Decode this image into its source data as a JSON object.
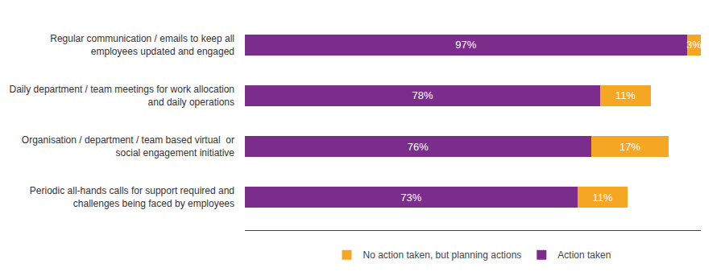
{
  "chart_data": {
    "type": "bar",
    "orientation": "horizontal",
    "stacked": true,
    "categories": [
      "Regular communication / emails to keep all\nemployees updated and engaged",
      "Daily department / team meetings for work allocation\nand daily operations",
      "Organisation / department / team based virtual  or\nsocial engagement initiative",
      "Periodic all-hands calls for support required and\nchallenges being faced by employees"
    ],
    "series": [
      {
        "name": "Action taken",
        "color": "#7B2D8B",
        "values": [
          97,
          78,
          76,
          73
        ],
        "value_labels": [
          "97%",
          "78%",
          "76%",
          "73%"
        ]
      },
      {
        "name": "No action taken, but planning actions",
        "color": "#F5A623",
        "values": [
          3,
          11,
          17,
          11
        ],
        "value_labels": [
          "3%",
          "11%",
          "17%",
          "11%"
        ]
      }
    ],
    "xlim": [
      0,
      100
    ],
    "grid": false,
    "legend": "bottom",
    "data_labels": true,
    "tick_labels": "y"
  }
}
